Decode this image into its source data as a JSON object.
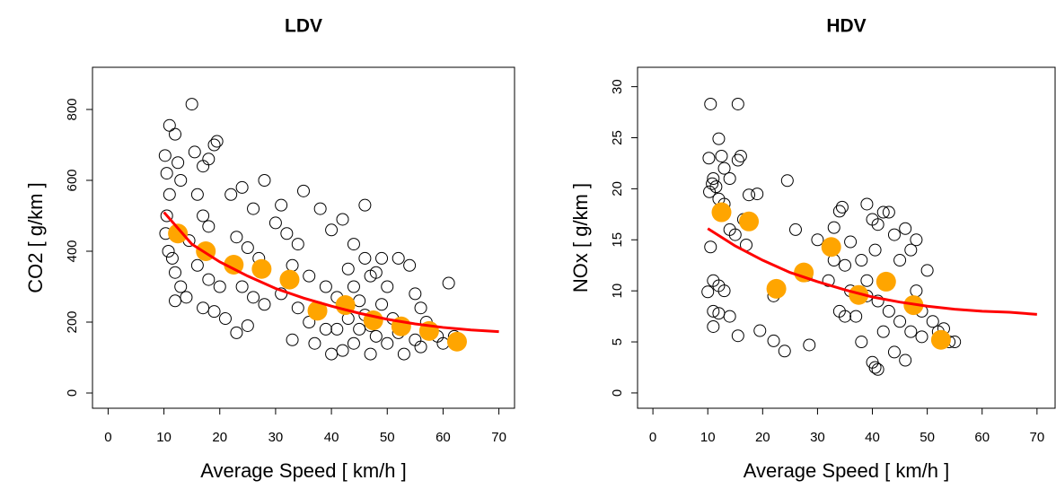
{
  "chart_data": [
    {
      "type": "scatter",
      "title": "LDV",
      "xlabel": "Average Speed [ km/h ]",
      "ylabel": "CO2 [ g/km ]",
      "xlim": [
        -2.8,
        72.8
      ],
      "ylim": [
        -43,
        919
      ],
      "xticks": [
        0,
        10,
        20,
        30,
        40,
        50,
        60,
        70
      ],
      "yticks": [
        0,
        200,
        400,
        600,
        800
      ],
      "series": [
        {
          "color": "#000000",
          "style": "open",
          "x": [
            10.2,
            10.5,
            11,
            12,
            12.5,
            13,
            11,
            10.5,
            10.3,
            10.8,
            11.5,
            12,
            13,
            14,
            12,
            15,
            15.5,
            17,
            18,
            19,
            19.5,
            16,
            17,
            18,
            14.5,
            16,
            18,
            20,
            17,
            19,
            21,
            22,
            24,
            26,
            28,
            23,
            25,
            27,
            24,
            26,
            28,
            25,
            23,
            30,
            31,
            32,
            34,
            35,
            33,
            36,
            31,
            34,
            36,
            33,
            38,
            40,
            42,
            44,
            46,
            39,
            41,
            43,
            44,
            45,
            46,
            47,
            48,
            44,
            42,
            40,
            46,
            48,
            50,
            49,
            51,
            52,
            50,
            53,
            54,
            55,
            56,
            57,
            58,
            55,
            52,
            59,
            60,
            61,
            62,
            45,
            47,
            43,
            41,
            49,
            47,
            56,
            37,
            39
          ],
          "values": [
            670,
            620,
            755,
            730,
            650,
            600,
            560,
            500,
            450,
            400,
            380,
            340,
            300,
            270,
            260,
            815,
            680,
            640,
            660,
            700,
            710,
            560,
            500,
            470,
            430,
            360,
            320,
            300,
            240,
            230,
            210,
            560,
            580,
            520,
            600,
            440,
            410,
            380,
            300,
            270,
            250,
            190,
            170,
            480,
            530,
            450,
            420,
            570,
            360,
            330,
            280,
            240,
            200,
            150,
            520,
            460,
            490,
            420,
            530,
            300,
            270,
            350,
            300,
            260,
            220,
            190,
            160,
            140,
            120,
            110,
            380,
            340,
            300,
            250,
            210,
            170,
            140,
            110,
            360,
            280,
            240,
            200,
            170,
            150,
            380,
            160,
            140,
            310,
            160,
            180,
            330,
            210,
            180,
            380,
            110,
            130,
            140,
            180
          ]
        },
        {
          "color": "#ffa500",
          "style": "filled",
          "x": [
            12.5,
            17.5,
            22.5,
            27.5,
            32.5,
            37.5,
            42.5,
            47.5,
            52.5,
            57.5,
            62.5
          ],
          "values": [
            450,
            400,
            362,
            350,
            320,
            232,
            248,
            205,
            188,
            175,
            145
          ]
        },
        {
          "color": "#ff0000",
          "style": "line",
          "x": [
            10,
            15,
            20,
            25,
            30,
            35,
            40,
            45,
            50,
            55,
            60,
            65,
            70
          ],
          "values": [
            510,
            420,
            370,
            330,
            295,
            268,
            245,
            225,
            208,
            195,
            185,
            178,
            173
          ]
        }
      ]
    },
    {
      "type": "scatter",
      "title": "HDV",
      "xlabel": "Average Speed [ km/h ]",
      "ylabel": "NOx [ g/km ]",
      "xlim": [
        -2.8,
        73.3
      ],
      "ylim": [
        -1.5,
        31.9
      ],
      "xticks": [
        0,
        10,
        20,
        30,
        40,
        50,
        60,
        70
      ],
      "yticks": [
        0,
        5,
        10,
        15,
        20,
        25,
        30
      ],
      "series": [
        {
          "color": "#000000",
          "style": "open",
          "x": [
            10.5,
            15.5,
            10.2,
            12,
            12.5,
            13,
            14,
            15.5,
            16,
            11,
            10.8,
            10.3,
            11.5,
            12,
            13,
            14,
            15,
            16.5,
            17.5,
            19,
            17,
            10.5,
            11,
            12,
            13,
            10,
            11,
            12,
            14,
            11,
            15.5,
            19.5,
            22,
            24,
            24.5,
            22,
            26,
            28,
            28.5,
            30,
            33,
            34,
            34.5,
            33,
            32,
            35,
            34,
            36,
            38,
            39,
            40,
            41,
            40.5,
            42,
            43,
            44,
            46,
            45,
            47,
            48,
            39,
            41,
            43,
            45,
            47,
            49,
            50,
            38,
            40,
            40.5,
            41,
            44,
            46,
            42,
            48,
            49,
            51,
            52,
            53,
            54,
            55,
            37,
            35,
            39,
            36
          ],
          "values": [
            28.3,
            28.3,
            23,
            24.9,
            23.2,
            22,
            21,
            22.8,
            23.2,
            21,
            20.5,
            19.7,
            20.2,
            19,
            18.5,
            16,
            15.5,
            17,
            19.4,
            19.5,
            14.5,
            14.3,
            11,
            10.5,
            10,
            9.9,
            8,
            7.8,
            7.5,
            6.5,
            5.6,
            6.1,
            5.1,
            4.1,
            20.8,
            9.5,
            16,
            11.5,
            4.7,
            15,
            16.2,
            17.8,
            18.2,
            13,
            11,
            12.5,
            8,
            10,
            13,
            18.5,
            17,
            16.5,
            14,
            17.7,
            17.7,
            15.5,
            16.1,
            13,
            14,
            15,
            11,
            9,
            8,
            7,
            6,
            5.5,
            12,
            5,
            3,
            2.5,
            2.3,
            4,
            3.2,
            6,
            10,
            8,
            7,
            6,
            6.3,
            5,
            5,
            7.5,
            7.5,
            9.5,
            14.8
          ]
        },
        {
          "color": "#ffa500",
          "style": "filled",
          "x": [
            12.5,
            17.5,
            22.5,
            27.5,
            32.5,
            37.5,
            42.5,
            47.5,
            52.5
          ],
          "values": [
            17.7,
            16.8,
            10.2,
            11.8,
            14.3,
            9.6,
            10.9,
            8.6,
            5.2
          ]
        },
        {
          "color": "#ff0000",
          "style": "line",
          "x": [
            10,
            15,
            20,
            25,
            30,
            35,
            40,
            45,
            50,
            55,
            60,
            65,
            70
          ],
          "values": [
            16.1,
            14.4,
            13.0,
            11.8,
            10.9,
            10.1,
            9.4,
            8.9,
            8.5,
            8.2,
            8.0,
            7.9,
            7.7
          ]
        }
      ]
    }
  ]
}
